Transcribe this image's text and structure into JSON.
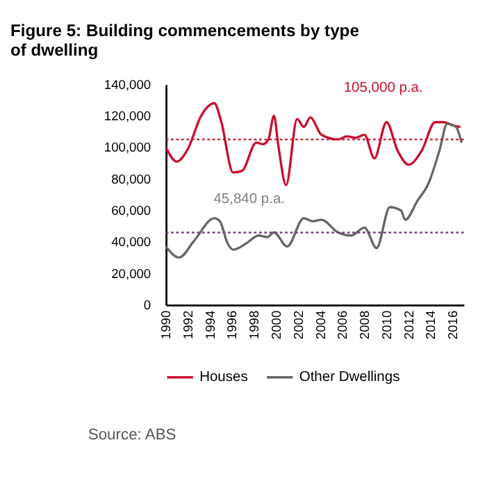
{
  "chart_data": {
    "type": "line",
    "title": "Figure 5: Building commencements by type of dwelling",
    "xlim": [
      1990,
      2017
    ],
    "xticks": [
      1990,
      1992,
      1994,
      1996,
      1998,
      2000,
      2002,
      2004,
      2006,
      2008,
      2010,
      2012,
      2014,
      2016
    ],
    "ylim": [
      0,
      140000
    ],
    "yticks": [
      0,
      {
        "value": 20000,
        "label": "20,000"
      },
      {
        "value": 40000,
        "label": "40,000"
      },
      {
        "value": 60000,
        "label": "60,000"
      },
      {
        "value": 80000,
        "label": "80,000"
      },
      {
        "value": 100000,
        "label": "100,000"
      },
      {
        "value": 120000,
        "label": "120,000"
      },
      {
        "value": 140000,
        "label": "140,000"
      }
    ],
    "grid": false,
    "legend": "bottom",
    "marker": "none",
    "line_style": "solid",
    "series": [
      {
        "name": "Houses",
        "color": "#c8102e",
        "x": [
          1990,
          1991,
          1992,
          1993.2,
          1994.4,
          1995,
          1996.1,
          1996.9,
          1998.2,
          1998.8,
          1999.3,
          1999.8,
          2000.2,
          2000.9,
          2001.9,
          2002.5,
          2003.1,
          2004.1,
          2005.6,
          2006.4,
          2007.2,
          2008,
          2008.9,
          2010,
          2011,
          2012,
          2013.2,
          2014.4,
          2015.2,
          2016,
          2016.7
        ],
        "values": [
          100000,
          91000,
          99000,
          120000,
          128000,
          117000,
          84000,
          85000,
          103000,
          102000,
          105000,
          120000,
          101000,
          76000,
          118000,
          113000,
          119000,
          108000,
          105000,
          107000,
          106000,
          108000,
          93000,
          116000,
          98000,
          89000,
          98000,
          116000,
          116000,
          114000,
          113000
        ]
      },
      {
        "name": "Other Dwellings",
        "color": "#666666",
        "x": [
          1990,
          1991.2,
          1992.6,
          1994.4,
          1994.9,
          1995.6,
          1996.1,
          1997.3,
          1998.4,
          1999.2,
          1999.8,
          2001,
          2002.5,
          2003.3,
          2004.1,
          2005.6,
          2006.8,
          2008,
          2009.1,
          2010.3,
          2011.3,
          2011.7,
          2012.8,
          2013.8,
          2014.8,
          2015.5,
          2016.3,
          2016.8
        ],
        "values": [
          37000,
          30000,
          41000,
          55000,
          53000,
          39000,
          35000,
          39000,
          44000,
          43000,
          46000,
          37000,
          55000,
          53000,
          54000,
          46000,
          44000,
          49000,
          36000,
          62000,
          60000,
          54000,
          66000,
          77000,
          98000,
          115000,
          113000,
          103000
        ]
      }
    ],
    "ref_lines": [
      {
        "axis": "y",
        "value": 105000,
        "label": "105,000 p.a.",
        "color": "#c8102e",
        "line_style": "dotted"
      },
      {
        "axis": "y",
        "value": 45840,
        "label": "45,840 p.a.",
        "color": "#7a3f7a",
        "line_style": "dotted"
      }
    ],
    "annotations": [
      "Source: ABS"
    ]
  }
}
